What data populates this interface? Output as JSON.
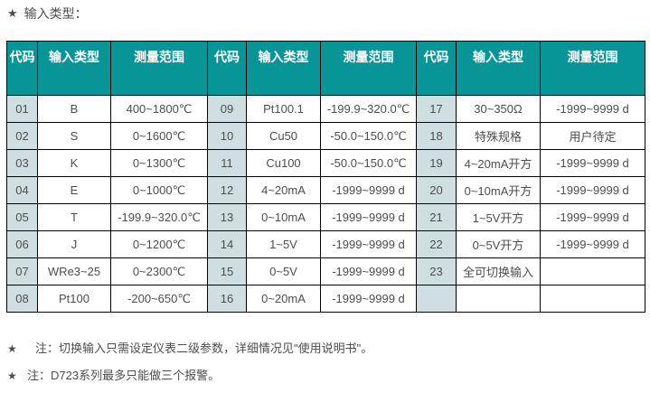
{
  "title": {
    "star": "★",
    "label": "输入类型："
  },
  "colors": {
    "header_bg": "#089598",
    "header_text": "#ffffff",
    "code_cell_bg": "#cfdfe1",
    "border": "#000000",
    "body_text": "#4d4d4d"
  },
  "table": {
    "columns": [
      "代码",
      "输入类型",
      "测量范围",
      "代码",
      "输入类型",
      "测量范围",
      "代码",
      "输入类型",
      "测量范围"
    ],
    "rows": [
      [
        "01",
        "B",
        "400~1800℃",
        "09",
        "Pt100.1",
        "-199.9~320.0℃",
        "17",
        "30~350Ω",
        "-1999~9999 d"
      ],
      [
        "02",
        "S",
        "0~1600℃",
        "10",
        "Cu50",
        "-50.0~150.0℃",
        "18",
        "特殊规格",
        "用户待定"
      ],
      [
        "03",
        "K",
        "0~1300℃",
        "11",
        "Cu100",
        "-50.0~150.0℃",
        "19",
        "4~20mA开方",
        "-1999~9999 d"
      ],
      [
        "04",
        "E",
        "0~1000℃",
        "12",
        "4~20mA",
        "-1999~9999 d",
        "20",
        "0~10mA开方",
        "-1999~9999 d"
      ],
      [
        "05",
        "T",
        "-199.9~320.0℃",
        "13",
        "0~10mA",
        "-1999~9999 d",
        "21",
        "1~5V开方",
        "-1999~9999 d"
      ],
      [
        "06",
        "J",
        "0~1200℃",
        "14",
        "1~5V",
        "-1999~9999 d",
        "22",
        "0~5V开方",
        "-1999~9999 d"
      ],
      [
        "07",
        "WRe3~25",
        "0~2300℃",
        "15",
        "0~5V",
        "-1999~9999 d",
        "23",
        "全可切换输入",
        ""
      ],
      [
        "08",
        "Pt100",
        "-200~650℃",
        "16",
        "0~20mA",
        "-1999~9999 d",
        "",
        "",
        ""
      ]
    ]
  },
  "notes": [
    {
      "star": "★",
      "text": "注：切换输入只需设定仪表二级参数，详细情况见\"使用说明书\"。"
    },
    {
      "star": "★",
      "text": "注：D723系列最多只能做三个报警。"
    }
  ]
}
